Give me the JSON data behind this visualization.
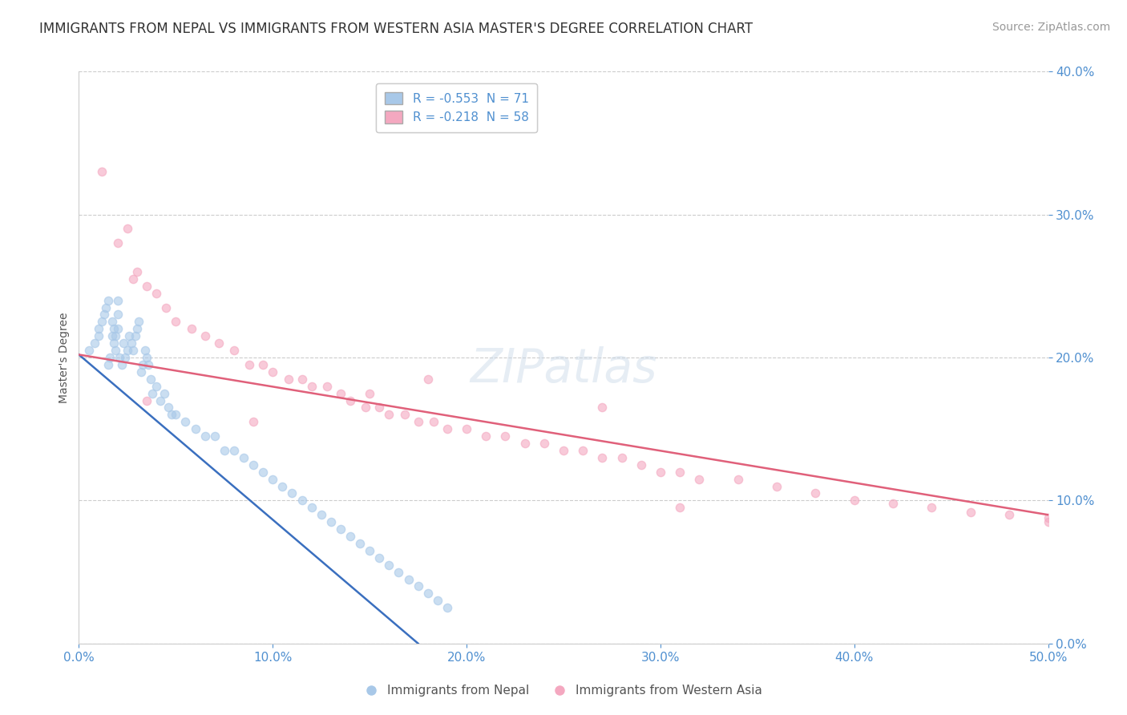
{
  "title": "IMMIGRANTS FROM NEPAL VS IMMIGRANTS FROM WESTERN ASIA MASTER'S DEGREE CORRELATION CHART",
  "source": "Source: ZipAtlas.com",
  "ylabel": "Master's Degree",
  "watermark": "ZIPatlas",
  "legend_label_nepal": "R = -0.553  N = 71",
  "legend_label_western": "R = -0.218  N = 58",
  "legend_labels_bottom": [
    "Immigrants from Nepal",
    "Immigrants from Western Asia"
  ],
  "xlim": [
    0.0,
    0.5
  ],
  "ylim": [
    0.0,
    0.4
  ],
  "x_ticks": [
    0.0,
    0.1,
    0.2,
    0.3,
    0.4,
    0.5
  ],
  "y_ticks": [
    0.0,
    0.1,
    0.2,
    0.3,
    0.4
  ],
  "nepal_color": "#a8c8e8",
  "nepal_line_color": "#3a6fbf",
  "western_color": "#f4a8c0",
  "western_line_color": "#e0607a",
  "scatter_alpha": 0.6,
  "scatter_size": 55,
  "grid_color": "#cccccc",
  "background_color": "#ffffff",
  "title_fontsize": 12,
  "label_fontsize": 10,
  "tick_fontsize": 11,
  "source_fontsize": 10,
  "watermark_color": "#c8d8e8",
  "watermark_alpha": 0.45,
  "tick_color": "#5090d0",
  "nepal_scatter_x": [
    0.005,
    0.008,
    0.01,
    0.01,
    0.012,
    0.013,
    0.014,
    0.015,
    0.015,
    0.016,
    0.017,
    0.017,
    0.018,
    0.018,
    0.019,
    0.019,
    0.02,
    0.02,
    0.02,
    0.021,
    0.022,
    0.023,
    0.024,
    0.025,
    0.026,
    0.027,
    0.028,
    0.029,
    0.03,
    0.031,
    0.032,
    0.033,
    0.034,
    0.035,
    0.036,
    0.037,
    0.038,
    0.04,
    0.042,
    0.044,
    0.046,
    0.048,
    0.05,
    0.055,
    0.06,
    0.065,
    0.07,
    0.075,
    0.08,
    0.085,
    0.09,
    0.095,
    0.1,
    0.105,
    0.11,
    0.115,
    0.12,
    0.125,
    0.13,
    0.135,
    0.14,
    0.145,
    0.15,
    0.155,
    0.16,
    0.165,
    0.17,
    0.175,
    0.18,
    0.185,
    0.19
  ],
  "nepal_scatter_y": [
    0.205,
    0.21,
    0.215,
    0.22,
    0.225,
    0.23,
    0.235,
    0.24,
    0.195,
    0.2,
    0.215,
    0.225,
    0.21,
    0.22,
    0.205,
    0.215,
    0.22,
    0.23,
    0.24,
    0.2,
    0.195,
    0.21,
    0.2,
    0.205,
    0.215,
    0.21,
    0.205,
    0.215,
    0.22,
    0.225,
    0.19,
    0.195,
    0.205,
    0.2,
    0.195,
    0.185,
    0.175,
    0.18,
    0.17,
    0.175,
    0.165,
    0.16,
    0.16,
    0.155,
    0.15,
    0.145,
    0.145,
    0.135,
    0.135,
    0.13,
    0.125,
    0.12,
    0.115,
    0.11,
    0.105,
    0.1,
    0.095,
    0.09,
    0.085,
    0.08,
    0.075,
    0.07,
    0.065,
    0.06,
    0.055,
    0.05,
    0.045,
    0.04,
    0.035,
    0.03,
    0.025
  ],
  "western_scatter_x": [
    0.012,
    0.02,
    0.025,
    0.028,
    0.03,
    0.035,
    0.04,
    0.045,
    0.05,
    0.058,
    0.065,
    0.072,
    0.08,
    0.088,
    0.095,
    0.1,
    0.108,
    0.115,
    0.12,
    0.128,
    0.135,
    0.14,
    0.148,
    0.155,
    0.16,
    0.168,
    0.175,
    0.183,
    0.19,
    0.2,
    0.21,
    0.22,
    0.23,
    0.24,
    0.25,
    0.26,
    0.27,
    0.28,
    0.29,
    0.3,
    0.31,
    0.32,
    0.34,
    0.36,
    0.38,
    0.4,
    0.42,
    0.44,
    0.46,
    0.48,
    0.5,
    0.5,
    0.27,
    0.18,
    0.035,
    0.09,
    0.15,
    0.31
  ],
  "western_scatter_y": [
    0.33,
    0.28,
    0.29,
    0.255,
    0.26,
    0.25,
    0.245,
    0.235,
    0.225,
    0.22,
    0.215,
    0.21,
    0.205,
    0.195,
    0.195,
    0.19,
    0.185,
    0.185,
    0.18,
    0.18,
    0.175,
    0.17,
    0.165,
    0.165,
    0.16,
    0.16,
    0.155,
    0.155,
    0.15,
    0.15,
    0.145,
    0.145,
    0.14,
    0.14,
    0.135,
    0.135,
    0.13,
    0.13,
    0.125,
    0.12,
    0.12,
    0.115,
    0.115,
    0.11,
    0.105,
    0.1,
    0.098,
    0.095,
    0.092,
    0.09,
    0.088,
    0.085,
    0.165,
    0.185,
    0.17,
    0.155,
    0.175,
    0.095
  ],
  "nepal_line_x": [
    0.0,
    0.175
  ],
  "nepal_line_y": [
    0.202,
    0.0
  ],
  "western_line_x": [
    0.0,
    0.5
  ],
  "western_line_y": [
    0.202,
    0.09
  ]
}
